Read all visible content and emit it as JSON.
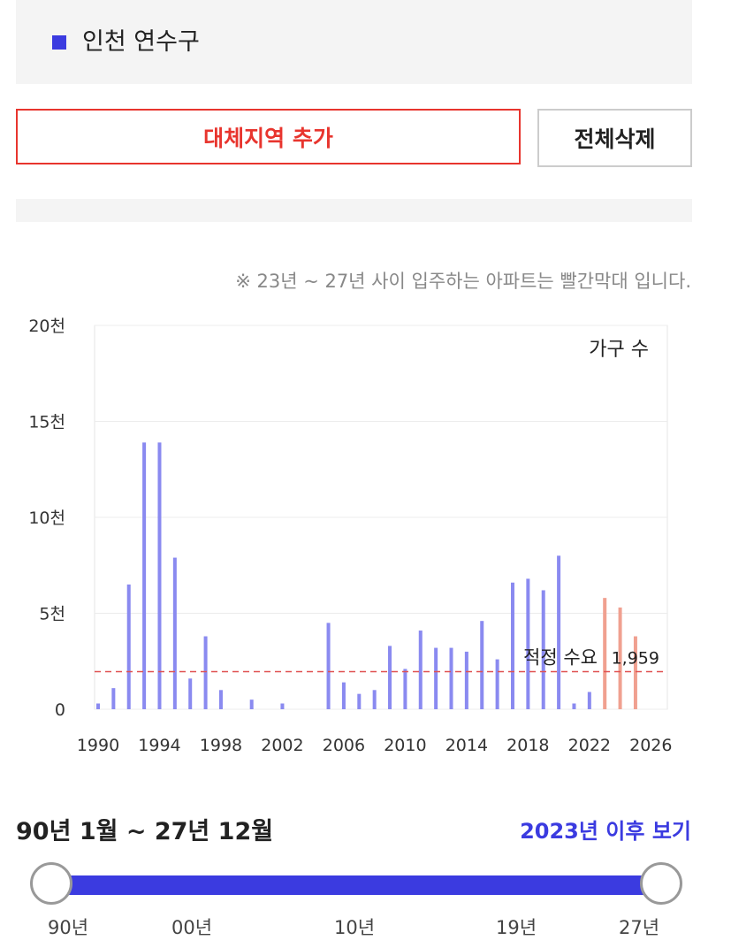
{
  "region": {
    "name": "인천 연수구",
    "marker_color": "#3b3be0"
  },
  "buttons": {
    "add_label": "대체지역 추가",
    "clear_label": "전체삭제"
  },
  "note": "※ 23년 ~ 27년 사이 입주하는 아파트는 빨간막대 입니다.",
  "chart_data": {
    "type": "bar",
    "ylim": [
      0,
      20000
    ],
    "yticks": [
      0,
      5000,
      10000,
      15000,
      20000
    ],
    "ytick_labels": [
      "0",
      "5천",
      "10천",
      "15천",
      "20천"
    ],
    "xticks": [
      1990,
      1994,
      1998,
      2002,
      2006,
      2010,
      2014,
      2018,
      2022,
      2026
    ],
    "xtick_labels": [
      "1990",
      "1994",
      "1998",
      "2002",
      "2006",
      "2010",
      "2014",
      "2018",
      "2022",
      "2026"
    ],
    "legend": "가구 수",
    "grid": true,
    "colors": {
      "past": "#8a8af0",
      "future": "#f0a090",
      "reference": "#e05050"
    },
    "series": [
      {
        "name": "가구 수",
        "x": [
          1990,
          1991,
          1992,
          1993,
          1994,
          1995,
          1996,
          1997,
          1998,
          2000,
          2002,
          2005,
          2006,
          2007,
          2008,
          2009,
          2010,
          2011,
          2012,
          2013,
          2014,
          2015,
          2016,
          2017,
          2018,
          2019,
          2020,
          2021,
          2022,
          2023,
          2024,
          2025
        ],
        "values": [
          300,
          1100,
          6500,
          13900,
          13900,
          7900,
          1600,
          3800,
          1000,
          500,
          300,
          4500,
          1400,
          800,
          1000,
          3300,
          2100,
          4100,
          3200,
          3200,
          3000,
          4600,
          2600,
          6600,
          6800,
          6200,
          8000,
          300,
          900,
          5800,
          5300,
          3800
        ],
        "future_from": 2023
      }
    ],
    "reference_line": {
      "label": "적정 수요",
      "value": 1959,
      "value_label": "1,959"
    }
  },
  "period": {
    "label": "90년 1월 ~ 27년 12월",
    "after_link": "2023년 이후 보기",
    "slider_color": "#3b3be0",
    "slider_ticks": [
      "90년",
      "00년",
      "10년",
      "19년",
      "27년"
    ],
    "range_start": "90년",
    "range_end": "27년"
  }
}
